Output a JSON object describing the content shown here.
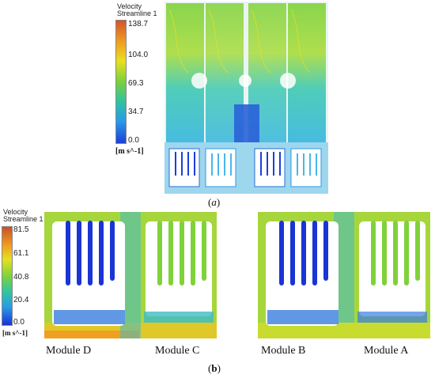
{
  "panel_a": {
    "legend": {
      "title_line1": "Velocity",
      "title_line2": "Streamline 1",
      "ticks": [
        "138.7",
        "104.0",
        "69.3",
        "34.7",
        "0.0"
      ],
      "unit": "[m s^-1]"
    },
    "caption": "(a)",
    "caption_letter": "a"
  },
  "panel_b": {
    "legend": {
      "title_line1": "Velocity",
      "title_line2": "Streamline 1",
      "ticks": [
        "81.5",
        "61.1",
        "40.8",
        "20.4",
        "0.0"
      ],
      "unit": "[m s^-1]"
    },
    "modules": [
      "Module D",
      "Module C",
      "Module B",
      "Module A"
    ],
    "caption": "(b)",
    "caption_letter": "b"
  },
  "colors": {
    "colorbar_a": [
      "#d2552b",
      "#f0a020",
      "#e8e020",
      "#7ad03a",
      "#2fc3a0",
      "#2a9be8",
      "#1d3fd8"
    ],
    "colorbar_b": [
      "#c9502a",
      "#f09a20",
      "#e6e020",
      "#7fd23a",
      "#30c6a0",
      "#2a99e8",
      "#1a34d6"
    ]
  }
}
